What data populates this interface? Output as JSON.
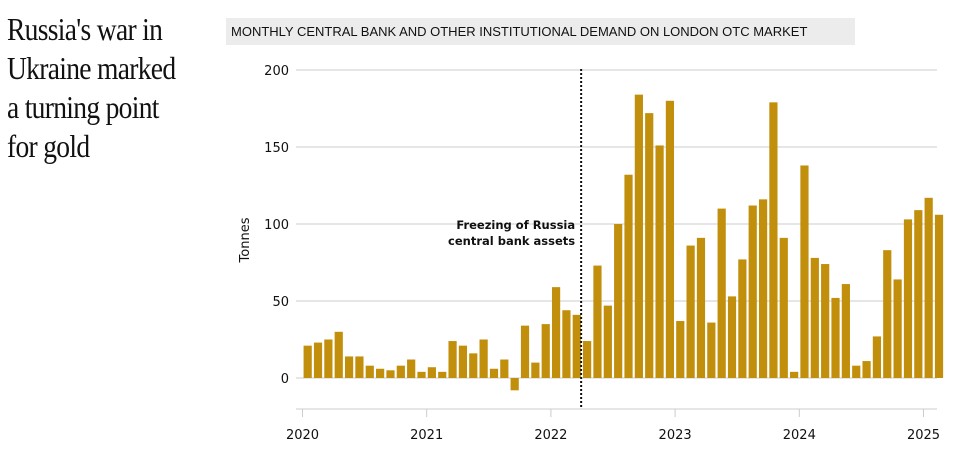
{
  "headline": "Russia's war in Ukraine marked a turning point for gold",
  "subtitle": "MONTHLY CENTRAL BANK AND OTHER INSTITUTIONAL DEMAND ON LONDON OTC MARKET",
  "colors": {
    "bar": "#c18f0c",
    "grid": "#cccccc",
    "annotation_line": "#111111"
  },
  "chart_data": {
    "type": "bar",
    "title": "MONTHLY CENTRAL BANK AND OTHER INSTITUTIONAL DEMAND ON LONDON OTC MARKET",
    "xlabel": "",
    "ylabel": "Tonnes",
    "ylim": [
      -20,
      200
    ],
    "yticks": [
      0,
      50,
      100,
      150,
      200
    ],
    "xticks": [
      "2020",
      "2021",
      "2022",
      "2023",
      "2024",
      "2025"
    ],
    "grid": true,
    "start": "2020-01",
    "categories": [
      "2020-01",
      "2020-02",
      "2020-03",
      "2020-04",
      "2020-05",
      "2020-06",
      "2020-07",
      "2020-08",
      "2020-09",
      "2020-10",
      "2020-11",
      "2020-12",
      "2021-01",
      "2021-02",
      "2021-03",
      "2021-04",
      "2021-05",
      "2021-06",
      "2021-07",
      "2021-08",
      "2021-09",
      "2021-10",
      "2021-11",
      "2021-12",
      "2022-01",
      "2022-02",
      "2022-03",
      "2022-04",
      "2022-05",
      "2022-06",
      "2022-07",
      "2022-08",
      "2022-09",
      "2022-10",
      "2022-11",
      "2022-12",
      "2023-01",
      "2023-02",
      "2023-03",
      "2023-04",
      "2023-05",
      "2023-06",
      "2023-07",
      "2023-08",
      "2023-09",
      "2023-10",
      "2023-11",
      "2023-12",
      "2024-01",
      "2024-02",
      "2024-03",
      "2024-04",
      "2024-05",
      "2024-06",
      "2024-07",
      "2024-08",
      "2024-09",
      "2024-10",
      "2024-11",
      "2024-12",
      "2025-01",
      "2025-02"
    ],
    "values": [
      21,
      23,
      25,
      30,
      14,
      14,
      8,
      6,
      5,
      8,
      12,
      4,
      7,
      4,
      24,
      21,
      16,
      25,
      6,
      12,
      -8,
      34,
      10,
      35,
      59,
      44,
      41,
      24,
      73,
      47,
      100,
      132,
      184,
      172,
      151,
      180,
      37,
      86,
      91,
      36,
      110,
      53,
      77,
      112,
      116,
      179,
      91,
      4,
      138,
      78,
      74,
      52,
      61,
      8,
      11,
      27,
      83,
      64,
      103,
      109,
      117,
      106
    ],
    "annotations": [
      {
        "type": "vline",
        "x": "2022-03",
        "label_lines": [
          "Freezing of Russia",
          "central bank assets"
        ],
        "style": "dotted"
      }
    ]
  }
}
